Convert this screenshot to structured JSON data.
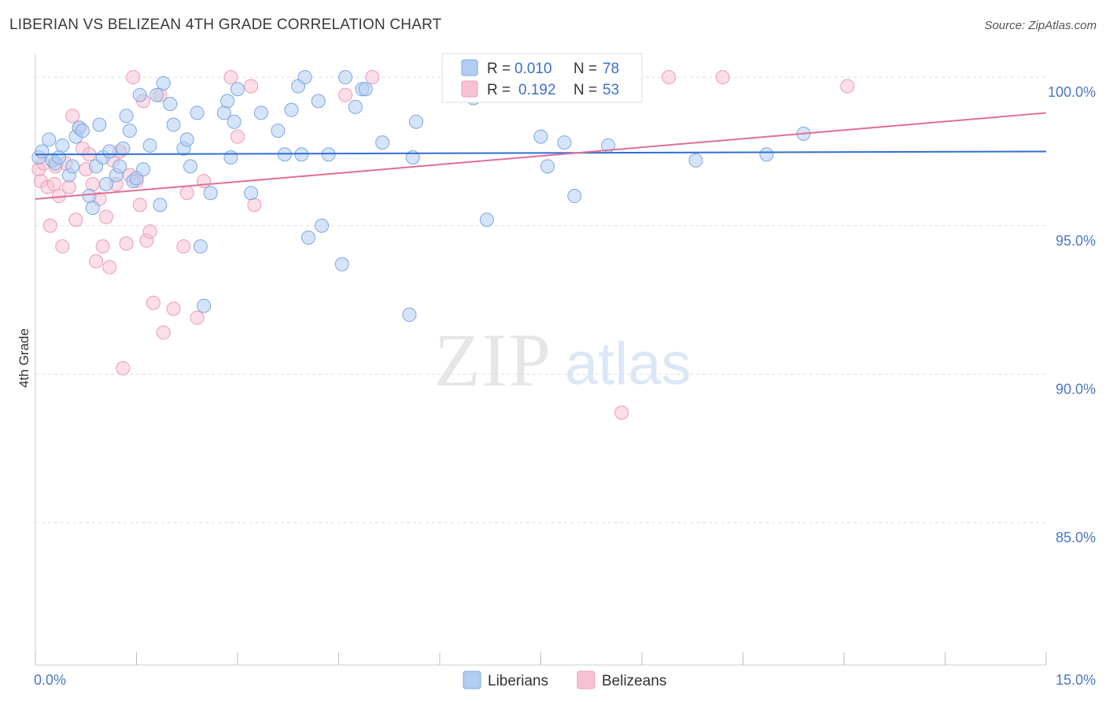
{
  "title": "LIBERIAN VS BELIZEAN 4TH GRADE CORRELATION CHART",
  "source": "Source: ZipAtlas.com",
  "watermark": {
    "zip": "ZIP",
    "atlas": "atlas"
  },
  "colors": {
    "blue_fill": "#b3cdf2",
    "blue_stroke": "#7ea6e0",
    "blue_line": "#2f6fd4",
    "pink_fill": "#f7c3d4",
    "pink_stroke": "#ee9ab6",
    "pink_line": "#e26d98",
    "tick_text": "#4a78c4",
    "grid": "#dddddd"
  },
  "legend": {
    "rows": [
      {
        "r_label": "R =",
        "r_value": "0.010",
        "n_label": "N =",
        "n_value": "78"
      },
      {
        "r_label": "R =",
        "r_value": "0.192",
        "n_label": "N =",
        "n_value": "53"
      }
    ]
  },
  "chart_data": {
    "type": "scatter",
    "title": "LIBERIAN VS BELIZEAN 4TH GRADE CORRELATION CHART",
    "xlabel": "",
    "ylabel": "4th Grade",
    "xlim": [
      0,
      15
    ],
    "ylim": [
      80.2,
      100.8
    ],
    "x_tick_labels": [
      {
        "value": 0,
        "label": "0.0%"
      },
      {
        "value": 15,
        "label": "15.0%"
      }
    ],
    "y_tick_labels": [
      {
        "value": 100,
        "label": "100.0%"
      },
      {
        "value": 95,
        "label": "95.0%"
      },
      {
        "value": 90,
        "label": "90.0%"
      },
      {
        "value": 85,
        "label": "85.0%"
      }
    ],
    "series": [
      {
        "name": "Liberians",
        "r": 0.01,
        "n": 78,
        "trend": {
          "x0": 0,
          "y0": 97.4,
          "x1": 15,
          "y1": 97.5
        },
        "points": [
          [
            0.05,
            97.3
          ],
          [
            0.1,
            97.5
          ],
          [
            0.2,
            97.9
          ],
          [
            0.25,
            97.2
          ],
          [
            0.3,
            97.1
          ],
          [
            0.35,
            97.3
          ],
          [
            0.4,
            97.7
          ],
          [
            0.5,
            96.7
          ],
          [
            0.55,
            97.0
          ],
          [
            0.6,
            98.0
          ],
          [
            0.65,
            98.3
          ],
          [
            0.7,
            98.2
          ],
          [
            0.8,
            96.0
          ],
          [
            0.85,
            95.6
          ],
          [
            0.9,
            97.0
          ],
          [
            0.95,
            98.4
          ],
          [
            1.0,
            97.3
          ],
          [
            1.05,
            96.4
          ],
          [
            1.1,
            97.5
          ],
          [
            1.2,
            96.7
          ],
          [
            1.25,
            97.0
          ],
          [
            1.3,
            97.6
          ],
          [
            1.35,
            98.7
          ],
          [
            1.4,
            98.2
          ],
          [
            1.45,
            96.5
          ],
          [
            1.5,
            96.6
          ],
          [
            1.55,
            99.4
          ],
          [
            1.6,
            96.9
          ],
          [
            1.7,
            97.7
          ],
          [
            1.8,
            99.4
          ],
          [
            1.85,
            95.7
          ],
          [
            1.9,
            99.8
          ],
          [
            2.0,
            99.1
          ],
          [
            2.05,
            98.4
          ],
          [
            2.2,
            97.6
          ],
          [
            2.25,
            97.9
          ],
          [
            2.3,
            97.0
          ],
          [
            2.4,
            98.8
          ],
          [
            2.45,
            94.3
          ],
          [
            2.5,
            92.3
          ],
          [
            2.6,
            96.1
          ],
          [
            2.8,
            98.8
          ],
          [
            2.85,
            99.2
          ],
          [
            2.9,
            97.3
          ],
          [
            2.95,
            98.5
          ],
          [
            3.0,
            99.6
          ],
          [
            3.2,
            96.1
          ],
          [
            3.35,
            98.8
          ],
          [
            3.6,
            98.2
          ],
          [
            3.7,
            97.4
          ],
          [
            3.8,
            98.9
          ],
          [
            3.9,
            99.7
          ],
          [
            3.95,
            97.4
          ],
          [
            4.0,
            100.0
          ],
          [
            4.05,
            94.6
          ],
          [
            4.2,
            99.2
          ],
          [
            4.25,
            95.0
          ],
          [
            4.35,
            97.4
          ],
          [
            4.55,
            93.7
          ],
          [
            4.6,
            100.0
          ],
          [
            4.75,
            99.0
          ],
          [
            4.85,
            99.6
          ],
          [
            4.9,
            99.6
          ],
          [
            5.15,
            97.8
          ],
          [
            5.55,
            92.0
          ],
          [
            5.6,
            97.3
          ],
          [
            5.65,
            98.5
          ],
          [
            6.2,
            99.4
          ],
          [
            6.7,
            95.2
          ],
          [
            7.5,
            98.0
          ],
          [
            7.6,
            97.0
          ],
          [
            7.85,
            97.8
          ],
          [
            8.0,
            96.0
          ],
          [
            8.5,
            97.7
          ],
          [
            9.8,
            97.2
          ],
          [
            10.85,
            97.4
          ],
          [
            11.4,
            98.1
          ],
          [
            6.5,
            99.3
          ]
        ]
      },
      {
        "name": "Belizeans",
        "r": 0.192,
        "n": 53,
        "trend": {
          "x0": 0,
          "y0": 95.9,
          "x1": 15,
          "y1": 98.8
        },
        "points": [
          [
            0.05,
            96.9
          ],
          [
            0.08,
            96.5
          ],
          [
            0.12,
            97.1
          ],
          [
            0.18,
            96.3
          ],
          [
            0.22,
            95.0
          ],
          [
            0.28,
            96.4
          ],
          [
            0.35,
            96.0
          ],
          [
            0.4,
            94.3
          ],
          [
            0.45,
            97.1
          ],
          [
            0.5,
            96.3
          ],
          [
            0.55,
            98.7
          ],
          [
            0.6,
            95.2
          ],
          [
            0.65,
            98.3
          ],
          [
            0.7,
            97.6
          ],
          [
            0.75,
            96.9
          ],
          [
            0.8,
            97.4
          ],
          [
            0.85,
            96.4
          ],
          [
            0.9,
            93.8
          ],
          [
            0.95,
            95.9
          ],
          [
            1.0,
            94.3
          ],
          [
            1.05,
            95.3
          ],
          [
            1.1,
            93.6
          ],
          [
            1.15,
            97.2
          ],
          [
            1.2,
            96.4
          ],
          [
            1.25,
            97.5
          ],
          [
            1.3,
            90.2
          ],
          [
            1.35,
            94.4
          ],
          [
            1.4,
            96.7
          ],
          [
            1.45,
            100.0
          ],
          [
            1.5,
            96.5
          ],
          [
            1.55,
            95.7
          ],
          [
            1.6,
            99.2
          ],
          [
            1.65,
            94.5
          ],
          [
            1.7,
            94.8
          ],
          [
            1.75,
            92.4
          ],
          [
            1.85,
            99.4
          ],
          [
            1.9,
            91.4
          ],
          [
            2.05,
            92.2
          ],
          [
            2.2,
            94.3
          ],
          [
            2.25,
            96.1
          ],
          [
            2.4,
            91.9
          ],
          [
            2.5,
            96.5
          ],
          [
            2.9,
            100.0
          ],
          [
            3.0,
            98.0
          ],
          [
            3.2,
            99.7
          ],
          [
            3.25,
            95.7
          ],
          [
            4.6,
            99.4
          ],
          [
            5.0,
            100.0
          ],
          [
            8.7,
            88.7
          ],
          [
            9.4,
            100.0
          ],
          [
            10.2,
            100.0
          ],
          [
            12.05,
            99.7
          ],
          [
            0.3,
            97.0
          ]
        ]
      }
    ],
    "legend_entries": [
      "Liberians",
      "Belizeans"
    ],
    "grid": true
  }
}
